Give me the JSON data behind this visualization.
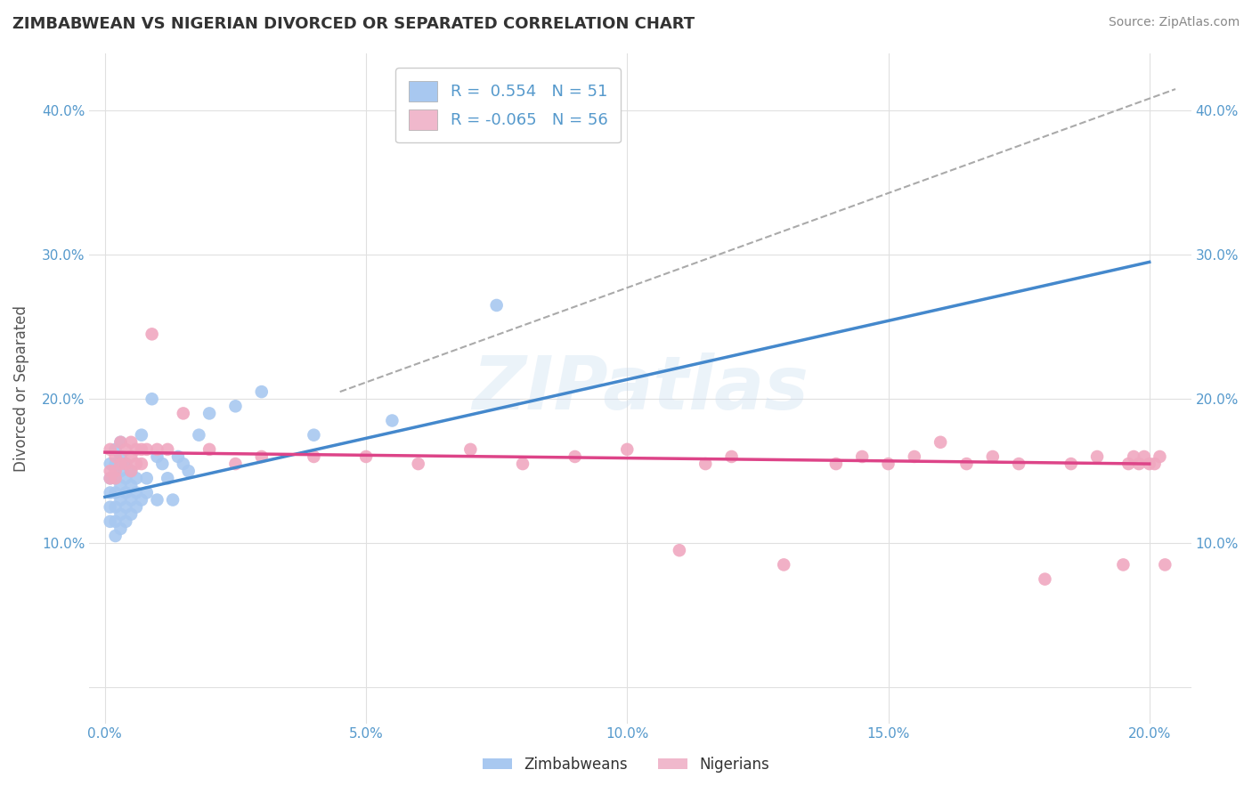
{
  "title": "ZIMBABWEAN VS NIGERIAN DIVORCED OR SEPARATED CORRELATION CHART",
  "source": "Source: ZipAtlas.com",
  "ylabel": "Divorced or Separated",
  "legend_labels": [
    "Zimbabweans",
    "Nigerians"
  ],
  "zimbabwean_R": 0.554,
  "zimbabwean_N": 51,
  "nigerian_R": -0.065,
  "nigerian_N": 56,
  "zimbabwean_color": "#a8c8f0",
  "nigerian_color": "#f0a8c0",
  "zimbabwean_line_color": "#4488cc",
  "nigerian_line_color": "#dd4488",
  "legend_color_zim": "#a8c8f0",
  "legend_color_nig": "#f0b8cc",
  "watermark": "ZIPatlas",
  "x_ticks": [
    0.0,
    0.05,
    0.1,
    0.15,
    0.2
  ],
  "x_tick_labels": [
    "0.0%",
    "5.0%",
    "10.0%",
    "15.0%",
    "20.0%"
  ],
  "y_ticks": [
    0.0,
    0.1,
    0.2,
    0.3,
    0.4
  ],
  "y_tick_labels_left": [
    "",
    "10.0%",
    "20.0%",
    "30.0%",
    "40.0%"
  ],
  "y_tick_labels_right": [
    "",
    "10.0%",
    "20.0%",
    "30.0%",
    "40.0%"
  ],
  "xlim": [
    -0.003,
    0.208
  ],
  "ylim": [
    -0.025,
    0.44
  ],
  "zimbabwean_x": [
    0.001,
    0.001,
    0.001,
    0.001,
    0.001,
    0.002,
    0.002,
    0.002,
    0.002,
    0.002,
    0.002,
    0.002,
    0.003,
    0.003,
    0.003,
    0.003,
    0.003,
    0.003,
    0.003,
    0.004,
    0.004,
    0.004,
    0.004,
    0.004,
    0.005,
    0.005,
    0.005,
    0.005,
    0.006,
    0.006,
    0.006,
    0.007,
    0.007,
    0.008,
    0.008,
    0.009,
    0.01,
    0.01,
    0.011,
    0.012,
    0.013,
    0.014,
    0.015,
    0.016,
    0.018,
    0.02,
    0.025,
    0.03,
    0.04,
    0.055,
    0.075
  ],
  "zimbabwean_y": [
    0.115,
    0.125,
    0.135,
    0.145,
    0.155,
    0.105,
    0.115,
    0.125,
    0.135,
    0.145,
    0.155,
    0.165,
    0.11,
    0.12,
    0.13,
    0.14,
    0.15,
    0.16,
    0.17,
    0.115,
    0.125,
    0.135,
    0.145,
    0.155,
    0.12,
    0.13,
    0.14,
    0.15,
    0.125,
    0.135,
    0.145,
    0.13,
    0.175,
    0.135,
    0.145,
    0.2,
    0.13,
    0.16,
    0.155,
    0.145,
    0.13,
    0.16,
    0.155,
    0.15,
    0.175,
    0.19,
    0.195,
    0.205,
    0.175,
    0.185,
    0.265
  ],
  "nigerian_x": [
    0.001,
    0.001,
    0.001,
    0.002,
    0.002,
    0.002,
    0.003,
    0.003,
    0.004,
    0.004,
    0.005,
    0.005,
    0.005,
    0.006,
    0.006,
    0.007,
    0.007,
    0.008,
    0.009,
    0.01,
    0.012,
    0.015,
    0.02,
    0.025,
    0.03,
    0.04,
    0.05,
    0.06,
    0.07,
    0.08,
    0.09,
    0.1,
    0.11,
    0.115,
    0.12,
    0.13,
    0.14,
    0.145,
    0.15,
    0.155,
    0.16,
    0.165,
    0.17,
    0.175,
    0.18,
    0.185,
    0.19,
    0.195,
    0.196,
    0.197,
    0.198,
    0.199,
    0.2,
    0.201,
    0.202,
    0.203
  ],
  "nigerian_y": [
    0.165,
    0.15,
    0.145,
    0.16,
    0.15,
    0.145,
    0.17,
    0.155,
    0.165,
    0.155,
    0.17,
    0.16,
    0.15,
    0.165,
    0.155,
    0.165,
    0.155,
    0.165,
    0.245,
    0.165,
    0.165,
    0.19,
    0.165,
    0.155,
    0.16,
    0.16,
    0.16,
    0.155,
    0.165,
    0.155,
    0.16,
    0.165,
    0.095,
    0.155,
    0.16,
    0.085,
    0.155,
    0.16,
    0.155,
    0.16,
    0.17,
    0.155,
    0.16,
    0.155,
    0.075,
    0.155,
    0.16,
    0.085,
    0.155,
    0.16,
    0.155,
    0.16,
    0.155,
    0.155,
    0.16,
    0.085
  ],
  "zim_line_x0": 0.0,
  "zim_line_y0": 0.132,
  "zim_line_x1": 0.2,
  "zim_line_y1": 0.295,
  "nig_line_x0": 0.0,
  "nig_line_y0": 0.163,
  "nig_line_x1": 0.2,
  "nig_line_y1": 0.155,
  "ref_line_x0": 0.045,
  "ref_line_y0": 0.205,
  "ref_line_x1": 0.205,
  "ref_line_y1": 0.415,
  "background_color": "#ffffff",
  "grid_color": "#e0e0e0",
  "title_color": "#333333",
  "axis_label_color": "#555555",
  "tick_color": "#5599cc",
  "source_color": "#888888"
}
